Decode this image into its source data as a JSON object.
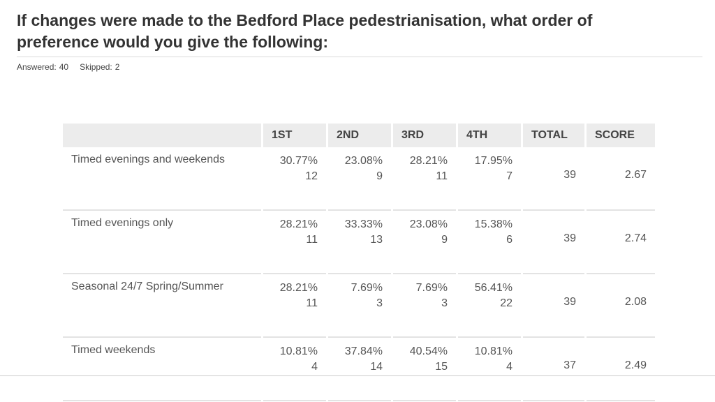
{
  "question": {
    "title": "If changes were made to the Bedford Place pedestrianisation, what order of preference would you give the following:"
  },
  "meta": {
    "answered_label": "Answered:",
    "answered_value": "40",
    "skipped_label": "Skipped:",
    "skipped_value": "2"
  },
  "table": {
    "headers": [
      "",
      "1ST",
      "2ND",
      "3RD",
      "4TH",
      "TOTAL",
      "SCORE"
    ],
    "rows": [
      {
        "label": "Timed evenings and weekends",
        "cells": [
          {
            "pct": "30.77%",
            "count": "12"
          },
          {
            "pct": "23.08%",
            "count": "9"
          },
          {
            "pct": "28.21%",
            "count": "11"
          },
          {
            "pct": "17.95%",
            "count": "7"
          }
        ],
        "total": "39",
        "score": "2.67"
      },
      {
        "label": "Timed evenings only",
        "cells": [
          {
            "pct": "28.21%",
            "count": "11"
          },
          {
            "pct": "33.33%",
            "count": "13"
          },
          {
            "pct": "23.08%",
            "count": "9"
          },
          {
            "pct": "15.38%",
            "count": "6"
          }
        ],
        "total": "39",
        "score": "2.74"
      },
      {
        "label": "Seasonal 24/7 Spring/Summer",
        "cells": [
          {
            "pct": "28.21%",
            "count": "11"
          },
          {
            "pct": "7.69%",
            "count": "3"
          },
          {
            "pct": "7.69%",
            "count": "3"
          },
          {
            "pct": "56.41%",
            "count": "22"
          }
        ],
        "total": "39",
        "score": "2.08"
      },
      {
        "label": "Timed weekends",
        "cells": [
          {
            "pct": "10.81%",
            "count": "4"
          },
          {
            "pct": "37.84%",
            "count": "14"
          },
          {
            "pct": "40.54%",
            "count": "15"
          },
          {
            "pct": "10.81%",
            "count": "4"
          }
        ],
        "total": "37",
        "score": "2.49"
      }
    ]
  }
}
